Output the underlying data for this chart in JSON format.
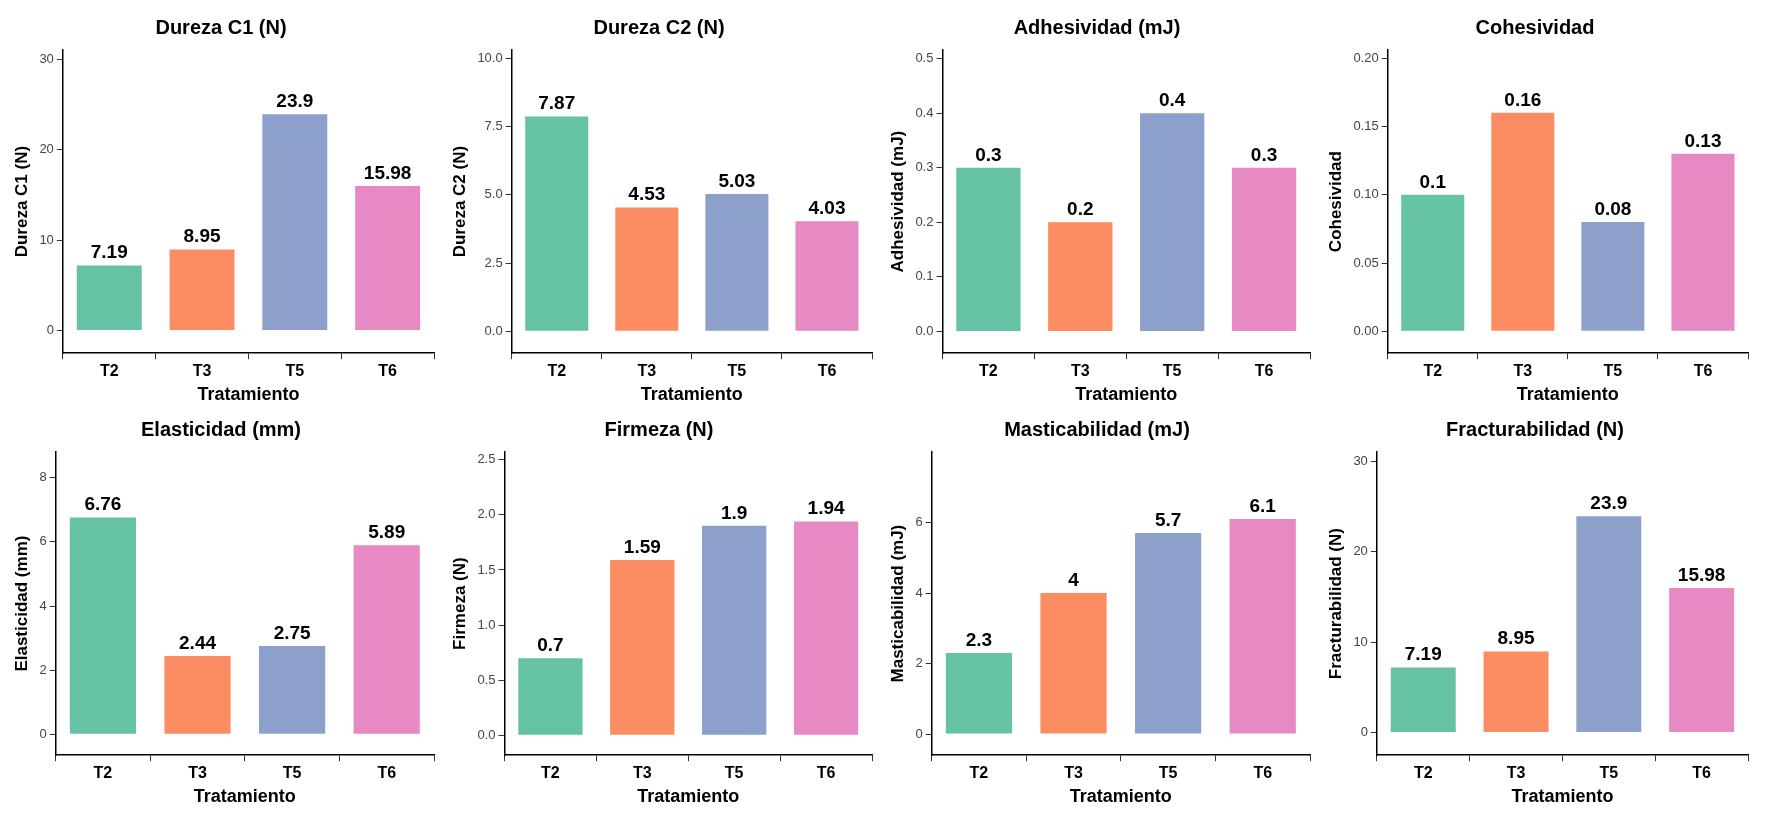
{
  "chart_data": [
    {
      "type": "bar",
      "title": "Dureza C1 (N)",
      "xlabel": "Tratamiento",
      "ylabel": "Dureza C1 (N)",
      "categories": [
        "T2",
        "T3",
        "T5",
        "T6"
      ],
      "values": [
        7.19,
        8.95,
        23.9,
        15.98
      ],
      "colors": [
        "#66c2a5",
        "#fc8d62",
        "#8da0cb",
        "#e78ac3"
      ],
      "ylim": [
        -2.5,
        31
      ],
      "yticks": [
        0,
        10,
        20,
        30
      ],
      "data_labels": true,
      "grid": false,
      "legend": false
    },
    {
      "type": "bar",
      "title": "Dureza C2 (N)",
      "xlabel": "Tratamiento",
      "ylabel": "Dureza C2 (N)",
      "categories": [
        "T2",
        "T3",
        "T5",
        "T6"
      ],
      "values": [
        7.87,
        4.53,
        5.03,
        4.03
      ],
      "colors": [
        "#66c2a5",
        "#fc8d62",
        "#8da0cb",
        "#e78ac3"
      ],
      "ylim": [
        -0.8,
        10.3
      ],
      "yticks": [
        {
          "value": 0,
          "label": "0.0"
        },
        {
          "value": 2.5,
          "label": "2.5"
        },
        {
          "value": 5,
          "label": "5.0"
        },
        {
          "value": 7.5,
          "label": "7.5"
        },
        {
          "value": 10,
          "label": "10.0"
        }
      ],
      "data_labels": true,
      "grid": false,
      "legend": false
    },
    {
      "type": "bar",
      "title": "Adhesividad (mJ)",
      "xlabel": "Tratamiento",
      "ylabel": "Adhesividad (mJ)",
      "categories": [
        "T2",
        "T3",
        "T5",
        "T6"
      ],
      "values": [
        0.3,
        0.2,
        0.4,
        0.3
      ],
      "colors": [
        "#66c2a5",
        "#fc8d62",
        "#8da0cb",
        "#e78ac3"
      ],
      "ylim": [
        -0.04,
        0.516
      ],
      "yticks": [
        {
          "value": 0,
          "label": "0.0"
        },
        0.1,
        0.2,
        0.3,
        0.4,
        0.5
      ],
      "data_labels": true,
      "grid": false,
      "legend": false
    },
    {
      "type": "bar",
      "title": "Cohesividad",
      "xlabel": "Tratamiento",
      "ylabel": "Cohesividad",
      "categories": [
        "T2",
        "T3",
        "T5",
        "T6"
      ],
      "values": [
        0.1,
        0.16,
        0.08,
        0.13
      ],
      "colors": [
        "#66c2a5",
        "#fc8d62",
        "#8da0cb",
        "#e78ac3"
      ],
      "ylim": [
        -0.016,
        0.206
      ],
      "yticks": [
        {
          "value": 0,
          "label": "0.00"
        },
        {
          "value": 0.05,
          "label": "0.05"
        },
        {
          "value": 0.1,
          "label": "0.10"
        },
        {
          "value": 0.15,
          "label": "0.15"
        },
        {
          "value": 0.2,
          "label": "0.20"
        }
      ],
      "data_labels": true,
      "grid": false,
      "legend": false
    },
    {
      "type": "bar",
      "title": "Elasticidad (mm)",
      "xlabel": "Tratamiento",
      "ylabel": "Elasticidad (mm)",
      "categories": [
        "T2",
        "T3",
        "T5",
        "T6"
      ],
      "values": [
        6.76,
        2.44,
        2.75,
        5.89
      ],
      "colors": [
        "#66c2a5",
        "#fc8d62",
        "#8da0cb",
        "#e78ac3"
      ],
      "ylim": [
        -0.65,
        8.8
      ],
      "yticks": [
        0,
        2,
        4,
        6,
        8
      ],
      "data_labels": true,
      "grid": false,
      "legend": false
    },
    {
      "type": "bar",
      "title": "Firmeza (N)",
      "xlabel": "Tratamiento",
      "ylabel": "Firmeza (N)",
      "categories": [
        "T2",
        "T3",
        "T5",
        "T6"
      ],
      "values": [
        0.7,
        1.59,
        1.9,
        1.94
      ],
      "colors": [
        "#66c2a5",
        "#fc8d62",
        "#8da0cb",
        "#e78ac3"
      ],
      "ylim": [
        -0.18,
        2.57
      ],
      "yticks": [
        {
          "value": 0,
          "label": "0.0"
        },
        {
          "value": 0.5,
          "label": "0.5"
        },
        {
          "value": 1,
          "label": "1.0"
        },
        {
          "value": 1.5,
          "label": "1.5"
        },
        {
          "value": 2,
          "label": "2.0"
        },
        {
          "value": 2.5,
          "label": "2.5"
        }
      ],
      "data_labels": true,
      "grid": false,
      "legend": false
    },
    {
      "type": "bar",
      "title": "Masticabilidad (mJ)",
      "xlabel": "Tratamiento",
      "ylabel": "Masticabilidad (mJ)",
      "categories": [
        "T2",
        "T3",
        "T5",
        "T6"
      ],
      "values": [
        2.3,
        4,
        5.7,
        6.1
      ],
      "colors": [
        "#66c2a5",
        "#fc8d62",
        "#8da0cb",
        "#e78ac3"
      ],
      "ylim": [
        -0.6,
        8
      ],
      "yticks": [
        0,
        2,
        4,
        6
      ],
      "data_labels": true,
      "grid": false,
      "legend": false
    },
    {
      "type": "bar",
      "title": "Fracturabilidad (N)",
      "xlabel": "Tratamiento",
      "ylabel": "Fracturabilidad (N)",
      "categories": [
        "T2",
        "T3",
        "T5",
        "T6"
      ],
      "values": [
        7.19,
        8.95,
        23.9,
        15.98
      ],
      "colors": [
        "#66c2a5",
        "#fc8d62",
        "#8da0cb",
        "#e78ac3"
      ],
      "ylim": [
        -2.5,
        31
      ],
      "yticks": [
        0,
        10,
        20,
        30
      ],
      "data_labels": true,
      "grid": false,
      "legend": false
    }
  ]
}
